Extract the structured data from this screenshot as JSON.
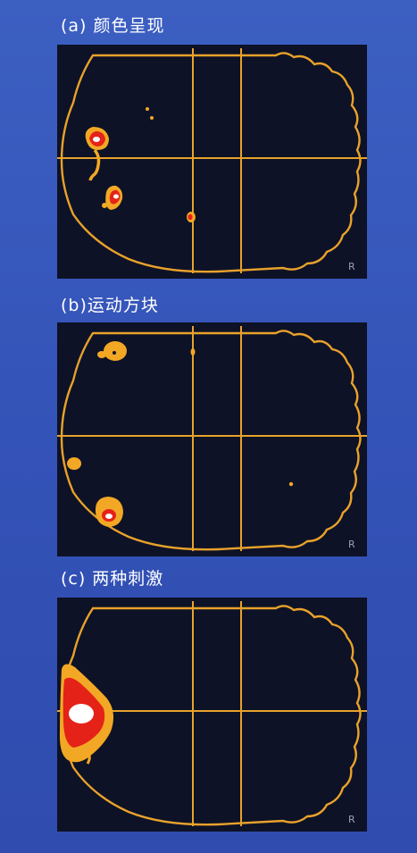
{
  "panels": [
    {
      "label": "(a) 颜色呈现",
      "corner": "R"
    },
    {
      "label": "(b)运动方块",
      "corner": "R"
    },
    {
      "label": "(c) 两种刺激",
      "corner": "R"
    }
  ],
  "colors": {
    "background": "#3453b8",
    "panel": "#0e1226",
    "outline": "#e8a22b",
    "activation_low": "#f2a825",
    "activation_mid": "#e52218",
    "activation_high": "#ffffff"
  }
}
